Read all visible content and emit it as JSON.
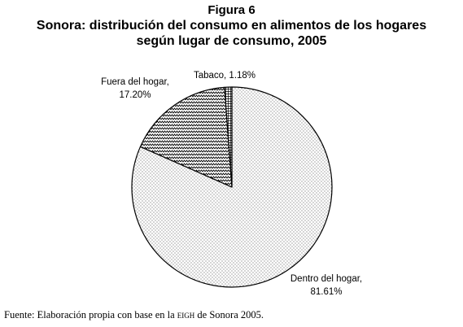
{
  "header": {
    "figure_label": "Figura 6",
    "title_line1": "Sonora: distribución del consumo en alimentos de los hogares",
    "title_line2": "según lugar de consumo, 2005"
  },
  "footer": {
    "source_prefix": "Fuente: Elaboración propia con base en la ",
    "source_abbrev": "eigh",
    "source_suffix": " de Sonora 2005."
  },
  "chart_data": {
    "type": "pie",
    "title": "Sonora: distribución del consumo en alimentos de los hogares según lugar de consumo, 2005",
    "start_angle_deg": 0,
    "direction": "clockwise",
    "slices": [
      {
        "label": "Dentro del hogar,",
        "value_label": "81.61%",
        "value": 81.61,
        "pattern": "dots"
      },
      {
        "label": "Fuera del hogar,",
        "value_label": "17.20%",
        "value": 17.2,
        "pattern": "zigzag"
      },
      {
        "label": "Tabaco, 1.18%",
        "value_label": "",
        "value": 1.18,
        "pattern": "grid"
      }
    ],
    "colors": {
      "stroke": "#000000",
      "pattern": "#000000",
      "background": "#ffffff"
    }
  }
}
